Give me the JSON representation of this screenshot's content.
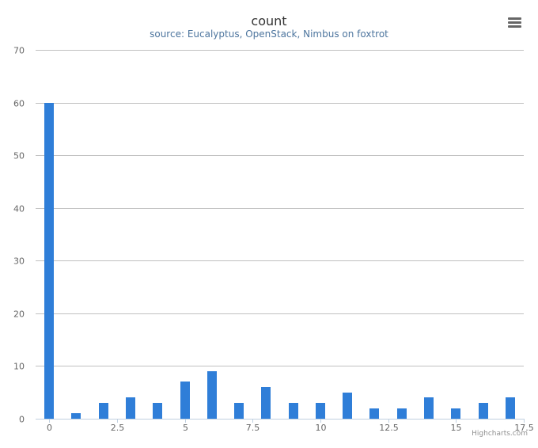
{
  "chart_data": {
    "type": "bar",
    "title": "count",
    "subtitle": "source: Eucalyptus, OpenStack, Nimbus on foxtrot",
    "xlabel": "",
    "ylabel": "",
    "x": [
      0,
      1,
      2,
      3,
      4,
      5,
      6,
      7,
      8,
      9,
      10,
      11,
      12,
      13,
      14,
      15,
      16,
      17
    ],
    "values": [
      60,
      1,
      3,
      4,
      3,
      7,
      9,
      3,
      6,
      3,
      3,
      5,
      2,
      2,
      4,
      2,
      3,
      4
    ],
    "xlim": [
      -0.5,
      17.5
    ],
    "ylim": [
      0,
      70
    ],
    "x_ticks": [
      0,
      2.5,
      5,
      7.5,
      10,
      12.5,
      15,
      17.5
    ],
    "x_tick_labels": [
      "0",
      "2.5",
      "5",
      "7.5",
      "10",
      "12.5",
      "15",
      "17.5"
    ],
    "y_ticks": [
      0,
      10,
      20,
      30,
      40,
      50,
      60,
      70
    ],
    "y_tick_labels": [
      "0",
      "10",
      "20",
      "30",
      "40",
      "50",
      "60",
      "70"
    ],
    "grid": true,
    "bar_color": "#2f7ed8",
    "legend": "none"
  },
  "ui": {
    "menu_icon": "hamburger-menu-icon",
    "credits": "Highcharts.com"
  }
}
